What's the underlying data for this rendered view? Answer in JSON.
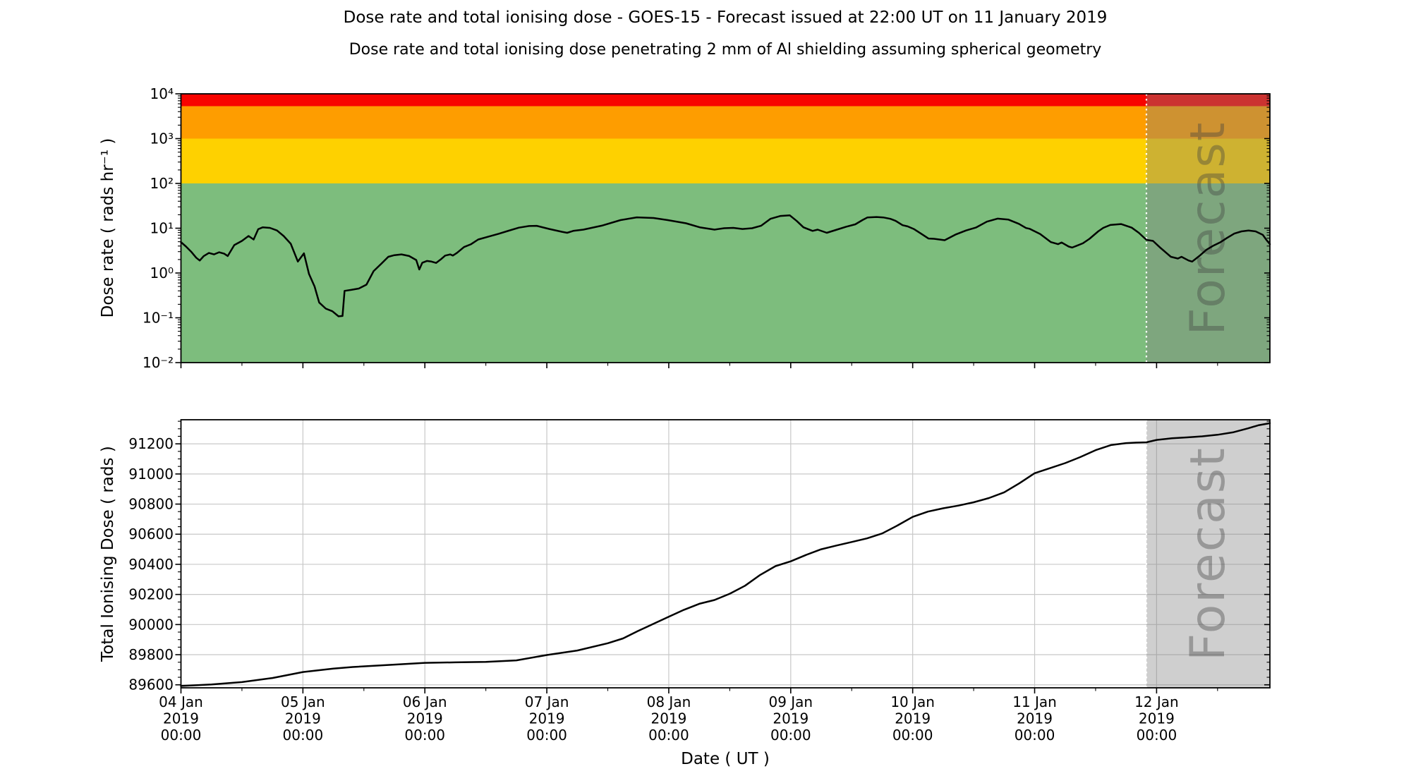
{
  "page": {
    "background": "#ffffff",
    "text_color": "#000000"
  },
  "chart_data": {
    "type": "line",
    "title": "Dose rate and total ionising dose - GOES-15 - Forecast issued at 22:00 UT on 11 January 2019",
    "subtitle": "Dose rate and total ionising dose penetrating 2 mm of Al shielding assuming spherical geometry",
    "layout_hint": "two stacked panels sharing time axis, grid off in top panel, grid on in bottom panel, no legend",
    "x_axis": {
      "label": "Date ( UT )",
      "start": "04 Jan 2019 00:00",
      "end": "12 Jan 2019 22:00",
      "hours_range": [
        0,
        214.3
      ],
      "major_tick_hours": [
        0,
        24,
        48,
        72,
        96,
        120,
        144,
        168,
        192
      ],
      "minor_tick_step_hours": 12,
      "tick_labels": [
        [
          "04 Jan",
          "2019",
          "00:00"
        ],
        [
          "05 Jan",
          "2019",
          "00:00"
        ],
        [
          "06 Jan",
          "2019",
          "00:00"
        ],
        [
          "07 Jan",
          "2019",
          "00:00"
        ],
        [
          "08 Jan",
          "2019",
          "00:00"
        ],
        [
          "09 Jan",
          "2019",
          "00:00"
        ],
        [
          "10 Jan",
          "2019",
          "00:00"
        ],
        [
          "11 Jan",
          "2019",
          "00:00"
        ],
        [
          "12 Jan",
          "2019",
          "00:00"
        ]
      ]
    },
    "forecast": {
      "label": "Forecast",
      "start": "11 Jan 2019 22:00",
      "start_hours": 190,
      "overlay_color": "rgba(128,128,128,0.38)",
      "boundary_line_color": "#ffffff",
      "watermark_color": "#404040"
    },
    "panels": [
      {
        "id": "dose_rate",
        "ylabel": "Dose rate ( rads hr⁻¹ )",
        "yscale": "log",
        "ylim": [
          0.01,
          10000
        ],
        "ytick_labels": [
          "10⁴",
          "10³",
          "10²",
          "10¹",
          "10⁰",
          "10⁻¹",
          "10⁻²"
        ],
        "ytick_values": [
          10000,
          1000,
          100,
          10,
          1,
          0.1,
          0.01
        ],
        "grid": false,
        "bands": [
          {
            "name": "red-alert-band",
            "vmin": 5300,
            "vmax": 10000,
            "color": "#f80400"
          },
          {
            "name": "orange-alert-band",
            "vmin": 1000,
            "vmax": 5300,
            "color": "#fe9d00"
          },
          {
            "name": "yellow-alert-band",
            "vmin": 100,
            "vmax": 1000,
            "color": "#fed100"
          },
          {
            "name": "green-safe-band",
            "vmin": 0.01,
            "vmax": 100,
            "color": "#7dbd7d"
          }
        ],
        "series": [
          {
            "name": "dose-rate",
            "color": "#000000",
            "points_hours_value": [
              [
                0,
                4.9
              ],
              [
                1,
                3.9
              ],
              [
                2,
                3.0
              ],
              [
                3,
                2.2
              ],
              [
                3.7,
                1.9
              ],
              [
                4.5,
                2.4
              ],
              [
                5.5,
                2.8
              ],
              [
                6.5,
                2.6
              ],
              [
                7.5,
                2.9
              ],
              [
                8.5,
                2.7
              ],
              [
                9.2,
                2.4
              ],
              [
                10.5,
                4.2
              ],
              [
                12,
                5.2
              ],
              [
                13.3,
                6.7
              ],
              [
                14.3,
                5.6
              ],
              [
                15.2,
                9.5
              ],
              [
                16.1,
                10.5
              ],
              [
                17.5,
                10.2
              ],
              [
                18.9,
                8.9
              ],
              [
                20.2,
                6.7
              ],
              [
                21.6,
                4.5
              ],
              [
                23,
                1.8
              ],
              [
                24.2,
                2.75
              ],
              [
                25.2,
                0.95
              ],
              [
                26.3,
                0.5
              ],
              [
                27.2,
                0.22
              ],
              [
                28.5,
                0.16
              ],
              [
                29.8,
                0.14
              ],
              [
                31,
                0.108
              ],
              [
                31.8,
                0.11
              ],
              [
                32.2,
                0.4
              ],
              [
                33.5,
                0.42
              ],
              [
                35,
                0.45
              ],
              [
                36.5,
                0.55
              ],
              [
                37.9,
                1.1
              ],
              [
                39.4,
                1.6
              ],
              [
                40.8,
                2.3
              ],
              [
                42,
                2.5
              ],
              [
                43.4,
                2.6
              ],
              [
                44.9,
                2.4
              ],
              [
                46.3,
                1.95
              ],
              [
                46.9,
                1.2
              ],
              [
                47.5,
                1.7
              ],
              [
                48.4,
                1.86
              ],
              [
                49.3,
                1.8
              ],
              [
                50.2,
                1.68
              ],
              [
                51.1,
                2.0
              ],
              [
                52,
                2.45
              ],
              [
                53,
                2.6
              ],
              [
                53.5,
                2.45
              ],
              [
                54.3,
                2.8
              ],
              [
                55.7,
                3.8
              ],
              [
                57.1,
                4.4
              ],
              [
                58.5,
                5.6
              ],
              [
                60.5,
                6.5
              ],
              [
                62.5,
                7.5
              ],
              [
                64.5,
                8.8
              ],
              [
                66.5,
                10.3
              ],
              [
                68.5,
                11.2
              ],
              [
                70,
                11.3
              ],
              [
                72.5,
                9.6
              ],
              [
                75,
                8.3
              ],
              [
                76,
                7.9
              ],
              [
                77.2,
                8.7
              ],
              [
                79.2,
                9.3
              ],
              [
                82.8,
                11.4
              ],
              [
                86.5,
                15.2
              ],
              [
                89.7,
                17.5
              ],
              [
                93,
                16.9
              ],
              [
                95.8,
                15.2
              ],
              [
                99.4,
                12.9
              ],
              [
                102.2,
                10.4
              ],
              [
                105,
                9.3
              ],
              [
                106.9,
                10.0
              ],
              [
                108.7,
                10.2
              ],
              [
                110.5,
                9.6
              ],
              [
                112.4,
                10.0
              ],
              [
                114.2,
                11.4
              ],
              [
                116,
                16.2
              ],
              [
                118,
                18.8
              ],
              [
                119.8,
                19.4
              ],
              [
                121.2,
                14.5
              ],
              [
                122.5,
                10.5
              ],
              [
                124.3,
                8.7
              ],
              [
                125.3,
                9.3
              ],
              [
                127.1,
                7.9
              ],
              [
                129.1,
                9.3
              ],
              [
                130.9,
                10.8
              ],
              [
                132.7,
                12.2
              ],
              [
                134.1,
                15.2
              ],
              [
                135.1,
                17.4
              ],
              [
                136.9,
                17.8
              ],
              [
                138.2,
                17.4
              ],
              [
                139.6,
                16.2
              ],
              [
                140.6,
                14.7
              ],
              [
                142,
                11.7
              ],
              [
                143,
                11.0
              ],
              [
                144.3,
                9.5
              ],
              [
                145.7,
                7.5
              ],
              [
                147.1,
                5.9
              ],
              [
                148.2,
                5.8
              ],
              [
                150.3,
                5.4
              ],
              [
                152.4,
                7.2
              ],
              [
                154.5,
                8.9
              ],
              [
                156.5,
                10.4
              ],
              [
                158.6,
                14.0
              ],
              [
                160.7,
                16.4
              ],
              [
                162.8,
                15.6
              ],
              [
                164.9,
                12.5
              ],
              [
                166.3,
                10.1
              ],
              [
                167,
                9.7
              ],
              [
                169.1,
                7.4
              ],
              [
                171.2,
                4.9
              ],
              [
                172.6,
                4.4
              ],
              [
                173.3,
                4.8
              ],
              [
                174.7,
                3.9
              ],
              [
                175.4,
                3.7
              ],
              [
                177.5,
                4.6
              ],
              [
                178.8,
                5.8
              ],
              [
                180.5,
                8.5
              ],
              [
                181.5,
                10.2
              ],
              [
                182.9,
                11.8
              ],
              [
                185,
                12.4
              ],
              [
                187.1,
                10.3
              ],
              [
                188.5,
                7.9
              ],
              [
                190,
                5.5
              ],
              [
                191.3,
                5.2
              ],
              [
                192.7,
                3.7
              ],
              [
                194.8,
                2.3
              ],
              [
                196.2,
                2.1
              ],
              [
                196.9,
                2.3
              ],
              [
                198.3,
                1.9
              ],
              [
                199,
                1.8
              ],
              [
                200.4,
                2.4
              ],
              [
                201.8,
                3.3
              ],
              [
                203.2,
                4.1
              ],
              [
                204.6,
                4.9
              ],
              [
                205.9,
                6.1
              ],
              [
                207.3,
                7.6
              ],
              [
                208.7,
                8.5
              ],
              [
                210.1,
                8.9
              ],
              [
                211.5,
                8.5
              ],
              [
                212.9,
                7.1
              ],
              [
                213.6,
                5.5
              ],
              [
                214.3,
                4.4
              ]
            ]
          }
        ]
      },
      {
        "id": "total_dose",
        "ylabel": "Total Ionising Dose ( rads )",
        "yscale": "linear",
        "ylim": [
          89580,
          91360
        ],
        "ytick_values": [
          89600,
          89800,
          90000,
          90200,
          90400,
          90600,
          90800,
          91000,
          91200
        ],
        "ytick_minor_step": 50,
        "grid": true,
        "grid_color": "#c8c8c8",
        "bands": [],
        "series": [
          {
            "name": "total-ionising-dose",
            "color": "#000000",
            "points_hours_value": [
              [
                0,
                89592
              ],
              [
                6,
                89602
              ],
              [
                12,
                89618
              ],
              [
                18,
                89645
              ],
              [
                24,
                89685
              ],
              [
                30,
                89708
              ],
              [
                33.8,
                89718
              ],
              [
                42,
                89734
              ],
              [
                48,
                89746
              ],
              [
                54,
                89749
              ],
              [
                60,
                89752
              ],
              [
                66,
                89762
              ],
              [
                72,
                89798
              ],
              [
                78,
                89828
              ],
              [
                84,
                89876
              ],
              [
                87,
                89908
              ],
              [
                90,
                89958
              ],
              [
                93,
                90005
              ],
              [
                96,
                90052
              ],
              [
                99,
                90098
              ],
              [
                102,
                90138
              ],
              [
                105,
                90163
              ],
              [
                108,
                90205
              ],
              [
                111,
                90258
              ],
              [
                114,
                90330
              ],
              [
                117,
                90388
              ],
              [
                120,
                90420
              ],
              [
                123,
                90462
              ],
              [
                126,
                90500
              ],
              [
                129,
                90525
              ],
              [
                132,
                90548
              ],
              [
                135,
                90572
              ],
              [
                138,
                90605
              ],
              [
                141,
                90658
              ],
              [
                144,
                90715
              ],
              [
                147,
                90750
              ],
              [
                150,
                90772
              ],
              [
                153,
                90790
              ],
              [
                156,
                90812
              ],
              [
                159,
                90840
              ],
              [
                162,
                90878
              ],
              [
                165,
                90938
              ],
              [
                168,
                91005
              ],
              [
                171,
                91038
              ],
              [
                174,
                91072
              ],
              [
                177,
                91112
              ],
              [
                180,
                91158
              ],
              [
                183,
                91192
              ],
              [
                186,
                91205
              ],
              [
                188,
                91208
              ],
              [
                190,
                91210
              ],
              [
                192,
                91226
              ],
              [
                195,
                91237
              ],
              [
                198,
                91243
              ],
              [
                201,
                91250
              ],
              [
                204,
                91260
              ],
              [
                207,
                91276
              ],
              [
                210,
                91303
              ],
              [
                212,
                91323
              ],
              [
                214.3,
                91337
              ]
            ]
          }
        ]
      }
    ]
  }
}
